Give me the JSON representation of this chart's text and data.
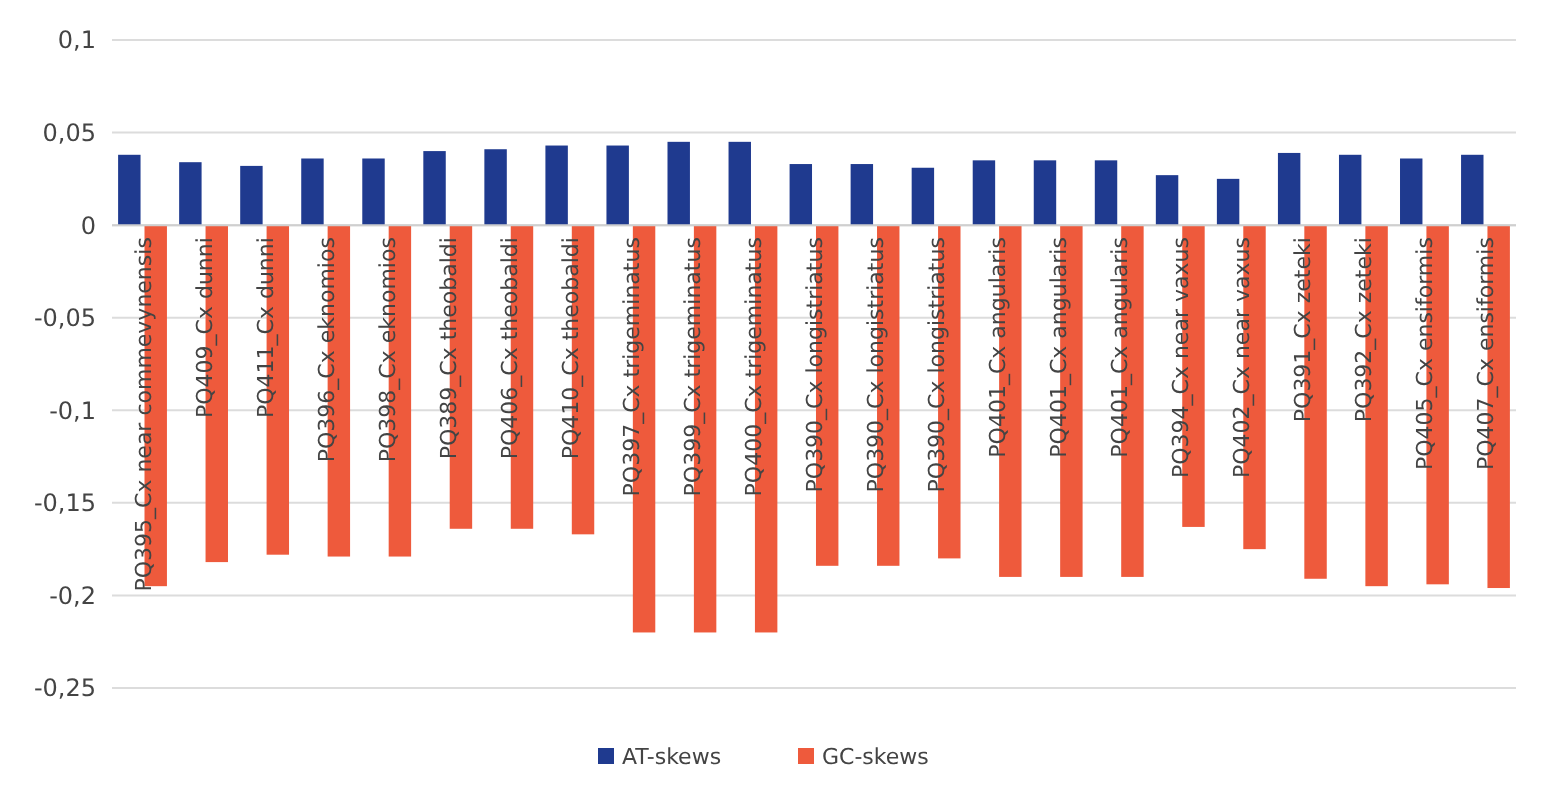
{
  "chart_data": {
    "type": "bar",
    "categories": [
      "PQ395_Cx near commevynensis",
      "PQ409_Cx dunni",
      "PQ411_Cx dunni",
      "PQ396_Cx eknomios",
      "PQ398_Cx eknomios",
      "PQ389_Cx theobaldi",
      "PQ406_Cx theobaldi",
      "PQ410_Cx theobaldi",
      "PQ397_Cx trigeminatus",
      "PQ399_Cx trigeminatus",
      "PQ400_Cx trigeminatus",
      "PQ390_Cx longistriatus",
      "PQ390_Cx longistriatus",
      "PQ390_Cx longistriatus",
      "PQ401_Cx angularis",
      "PQ401_Cx angularis",
      "PQ401_Cx angularis",
      "PQ394_Cx near vaxus",
      "PQ402_Cx near vaxus",
      "PQ391_Cx zeteki",
      "PQ392_Cx zeteki",
      "PQ405_Cx ensiformis",
      "PQ407_Cx ensiformis"
    ],
    "series": [
      {
        "name": "AT-skews",
        "color": "#1f3a8f",
        "values": [
          0.038,
          0.034,
          0.032,
          0.036,
          0.036,
          0.04,
          0.041,
          0.043,
          0.043,
          0.045,
          0.045,
          0.033,
          0.033,
          0.031,
          0.035,
          0.035,
          0.035,
          0.027,
          0.025,
          0.039,
          0.038,
          0.036,
          0.038
        ]
      },
      {
        "name": "GC-skews",
        "color": "#ee5a3c",
        "values": [
          -0.195,
          -0.182,
          -0.178,
          -0.179,
          -0.179,
          -0.164,
          -0.164,
          -0.167,
          -0.22,
          -0.22,
          -0.22,
          -0.184,
          -0.184,
          -0.18,
          -0.19,
          -0.19,
          -0.19,
          -0.163,
          -0.175,
          -0.191,
          -0.195,
          -0.194,
          -0.196
        ]
      }
    ],
    "ylim": [
      -0.25,
      0.1
    ],
    "yticks": [
      {
        "value": -0.25,
        "label": "-0,25"
      },
      {
        "value": -0.2,
        "label": "-0,2"
      },
      {
        "value": -0.15,
        "label": "-0,15"
      },
      {
        "value": -0.1,
        "label": "-0,1"
      },
      {
        "value": -0.05,
        "label": "-0,05"
      },
      0,
      {
        "value": 0.05,
        "label": "0,05"
      },
      {
        "value": 0.1,
        "label": "0,1"
      }
    ],
    "grid": "y",
    "legend": "bottom"
  }
}
